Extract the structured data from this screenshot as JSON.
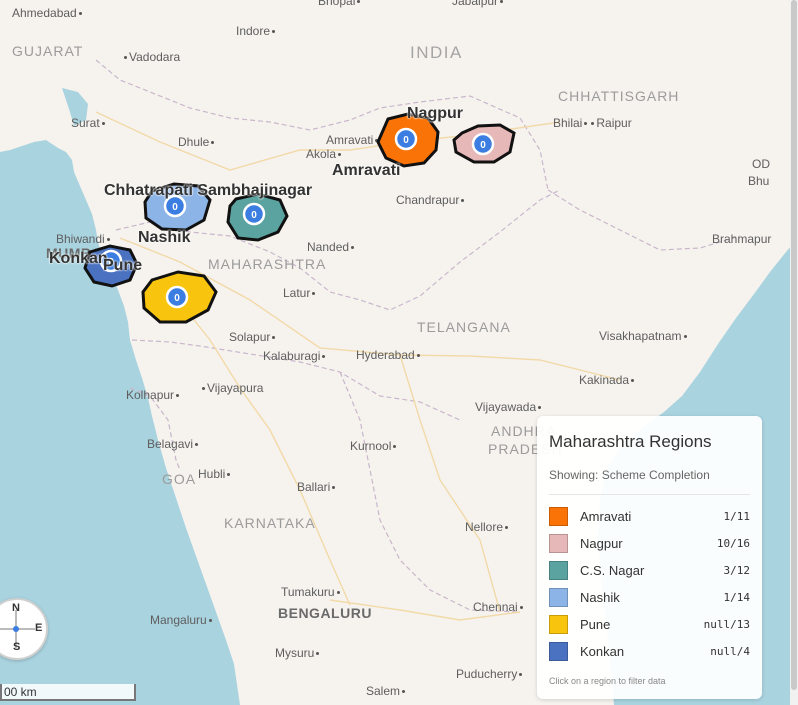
{
  "map": {
    "places": {
      "ahmedabad": "Ahmedabad",
      "bhopal": "Bhopal",
      "jabalpur": "Jabalpur",
      "indore": "Indore",
      "vadodara": "Vadodara",
      "surat": "Surat",
      "dhule": "Dhule",
      "amravati": "Amravati",
      "akola": "Akola",
      "bhilai": "Bhilai",
      "raipur": "Raipur",
      "chandrapur": "Chandrapur",
      "bhiwandi": "Bhiwandi",
      "mumbai": "MUMBAI",
      "nanded": "Nanded",
      "latur": "Latur",
      "solapur": "Solapur",
      "kalaburagi": "Kalaburagi",
      "hyderabad": "Hyderabad",
      "visakhapatnam": "Visakhapatnam",
      "kolhapur": "Kolhapur",
      "vijayapura": "Vijayapura",
      "kakinada": "Kakinada",
      "vijayawada": "Vijayawada",
      "belagavi": "Belagavi",
      "kurnool": "Kurnool",
      "hubli": "Hubli",
      "ballari": "Ballari",
      "nellore": "Nellore",
      "tumakuru": "Tumakuru",
      "chennai": "Chennai",
      "mangaluru": "Mangaluru",
      "mysuru": "Mysuru",
      "puducherry": "Puducherry",
      "salem": "Salem",
      "brahmapur": "Brahmapur",
      "odisha_partial": "OD",
      "bhubaneswar_partial": "Bhu"
    },
    "states": {
      "gujarat": "GUJARAT",
      "chhattisgarh": "CHHATTISGARH",
      "maharashtra": "MAHARASHTRA",
      "telangana": "TELANGANA",
      "andhra": "ANDHRA",
      "pradesh": "PRADESH",
      "goa": "GOA",
      "karnataka": "KARNATAKA"
    },
    "country": "INDIA",
    "big_city": "BENGALURU"
  },
  "regions": [
    {
      "id": "amravati",
      "label": "Amravati",
      "marker": "0",
      "color": "#f97306"
    },
    {
      "id": "nagpur",
      "label": "Nagpur",
      "marker": "0",
      "color": "#e6b8b8"
    },
    {
      "id": "csnagar",
      "label": "Chhatrapati Sambhajinagar",
      "marker": "0",
      "color": "#5aa3a0"
    },
    {
      "id": "nashik",
      "label": "Nashik",
      "marker": "0",
      "color": "#8db4e6"
    },
    {
      "id": "pune",
      "label": "Pune",
      "marker": "0",
      "color": "#f8c40d"
    },
    {
      "id": "konkan",
      "label": "Konkan",
      "marker": "0",
      "color": "#4a72c0"
    }
  ],
  "compass": {
    "n": "N",
    "s": "S",
    "e": "E"
  },
  "scale": {
    "label": "00 km"
  },
  "legend": {
    "title": "Maharashtra Regions",
    "subtitle": "Showing: Scheme Completion",
    "items": [
      {
        "name": "Amravati",
        "value": "1/11",
        "color": "#f97306"
      },
      {
        "name": "Nagpur",
        "value": "10/16",
        "color": "#e6b8b8"
      },
      {
        "name": "C.S. Nagar",
        "value": "3/12",
        "color": "#5aa3a0"
      },
      {
        "name": "Nashik",
        "value": "1/14",
        "color": "#8db4e6"
      },
      {
        "name": "Pune",
        "value": "null/13",
        "color": "#f8c40d"
      },
      {
        "name": "Konkan",
        "value": "null/4",
        "color": "#4a72c0"
      }
    ],
    "hint": "Click on a region to filter data"
  }
}
